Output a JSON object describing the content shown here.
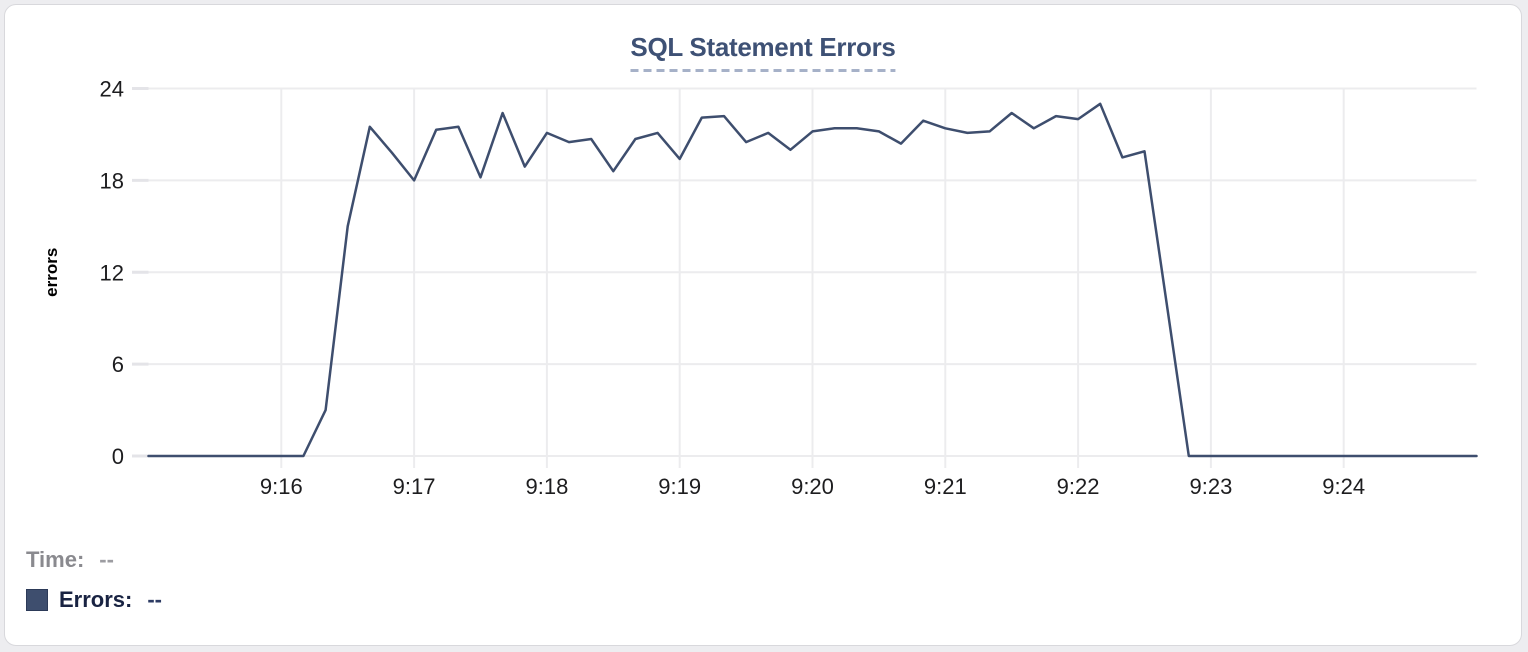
{
  "header": {
    "title": "SQL Statement Errors"
  },
  "colors": {
    "accent_line": "#3e4e6e",
    "title": "#3e5175",
    "grid": "#ececee",
    "tick_text": "#1d1d1f",
    "card_border": "#d8d8dc",
    "page_background": "#ededf0"
  },
  "chart_data": {
    "type": "line",
    "title": "SQL Statement Errors",
    "xlabel": "",
    "ylabel": "errors",
    "grid": true,
    "legend_position": "none",
    "x_domain": [
      "9:15:00",
      "9:25:00"
    ],
    "ylim": [
      0,
      24
    ],
    "y_ticks": [
      0,
      6,
      12,
      18,
      24
    ],
    "x_tick_labels": [
      "9:16",
      "9:17",
      "9:18",
      "9:19",
      "9:20",
      "9:21",
      "9:22",
      "9:23",
      "9:24"
    ],
    "series": [
      {
        "name": "Errors",
        "color": "#3e4e6e",
        "points": [
          [
            "9:15:00",
            0
          ],
          [
            "9:15:10",
            0
          ],
          [
            "9:15:20",
            0
          ],
          [
            "9:15:30",
            0
          ],
          [
            "9:15:40",
            0
          ],
          [
            "9:15:50",
            0
          ],
          [
            "9:16:00",
            0
          ],
          [
            "9:16:10",
            0
          ],
          [
            "9:16:20",
            3
          ],
          [
            "9:16:30",
            15
          ],
          [
            "9:16:40",
            21.5
          ],
          [
            "9:16:50",
            19.8
          ],
          [
            "9:17:00",
            18
          ],
          [
            "9:17:10",
            21.3
          ],
          [
            "9:17:20",
            21.5
          ],
          [
            "9:17:30",
            18.2
          ],
          [
            "9:17:40",
            22.4
          ],
          [
            "9:17:50",
            18.9
          ],
          [
            "9:18:00",
            21.1
          ],
          [
            "9:18:10",
            20.5
          ],
          [
            "9:18:20",
            20.7
          ],
          [
            "9:18:30",
            18.6
          ],
          [
            "9:18:40",
            20.7
          ],
          [
            "9:18:50",
            21.1
          ],
          [
            "9:19:00",
            19.4
          ],
          [
            "9:19:10",
            22.1
          ],
          [
            "9:19:20",
            22.2
          ],
          [
            "9:19:30",
            20.5
          ],
          [
            "9:19:40",
            21.1
          ],
          [
            "9:19:50",
            20
          ],
          [
            "9:20:00",
            21.2
          ],
          [
            "9:20:10",
            21.4
          ],
          [
            "9:20:20",
            21.4
          ],
          [
            "9:20:30",
            21.2
          ],
          [
            "9:20:40",
            20.4
          ],
          [
            "9:20:50",
            21.9
          ],
          [
            "9:21:00",
            21.4
          ],
          [
            "9:21:10",
            21.1
          ],
          [
            "9:21:20",
            21.2
          ],
          [
            "9:21:30",
            22.4
          ],
          [
            "9:21:40",
            21.4
          ],
          [
            "9:21:50",
            22.2
          ],
          [
            "9:22:00",
            22
          ],
          [
            "9:22:10",
            23
          ],
          [
            "9:22:20",
            19.5
          ],
          [
            "9:22:30",
            19.9
          ],
          [
            "9:22:40",
            10
          ],
          [
            "9:22:50",
            0
          ],
          [
            "9:23:00",
            0
          ],
          [
            "9:23:10",
            0
          ],
          [
            "9:23:20",
            0
          ],
          [
            "9:23:30",
            0
          ],
          [
            "9:23:40",
            0
          ],
          [
            "9:23:50",
            0
          ],
          [
            "9:24:00",
            0
          ],
          [
            "9:24:10",
            0
          ],
          [
            "9:24:20",
            0
          ],
          [
            "9:24:30",
            0
          ],
          [
            "9:24:40",
            0
          ],
          [
            "9:24:50",
            0
          ],
          [
            "9:25:00",
            0
          ]
        ]
      }
    ]
  },
  "tooltip_readout": {
    "time_label": "Time:",
    "time_value": "--",
    "errors_label": "Errors:",
    "errors_value": "--"
  }
}
